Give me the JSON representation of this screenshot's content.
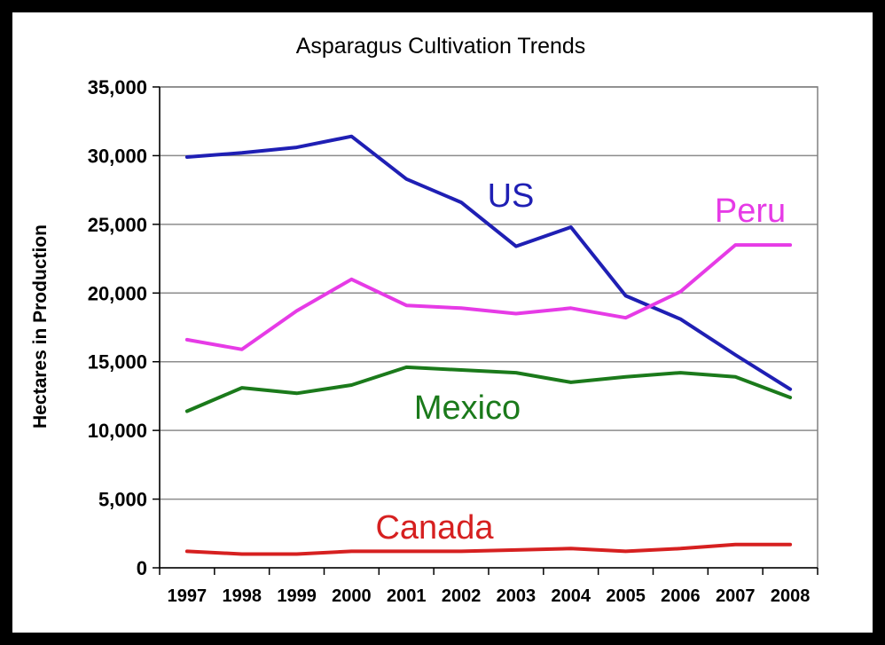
{
  "chart_data": {
    "type": "line",
    "title": "Asparagus Cultivation Trends",
    "xlabel": "",
    "ylabel": "Hectares in Production",
    "ylim": [
      0,
      35000
    ],
    "yticks": [
      "0",
      "5,000",
      "10,000",
      "15,000",
      "20,000",
      "25,000",
      "30,000",
      "35,000"
    ],
    "grid": true,
    "categories": [
      "1997",
      "1998",
      "1999",
      "2000",
      "2001",
      "2002",
      "2003",
      "2004",
      "2005",
      "2006",
      "2007",
      "2008"
    ],
    "series": [
      {
        "name": "US",
        "color": "#1f1fb4",
        "values": [
          29900,
          30200,
          30600,
          31400,
          28300,
          26600,
          23400,
          24800,
          19800,
          18100,
          15500,
          13000
        ]
      },
      {
        "name": "Peru",
        "color": "#e63be6",
        "values": [
          16600,
          15900,
          18700,
          21000,
          19100,
          18900,
          18500,
          18900,
          18200,
          20100,
          23500,
          23500
        ]
      },
      {
        "name": "Mexico",
        "color": "#1b7a1b",
        "values": [
          11400,
          13100,
          12700,
          13300,
          14600,
          14400,
          14200,
          13500,
          13900,
          14200,
          13900,
          12400
        ]
      },
      {
        "name": "Canada",
        "color": "#d62020",
        "values": [
          1200,
          1000,
          1000,
          1200,
          1200,
          1200,
          1300,
          1400,
          1200,
          1400,
          1700,
          1700
        ]
      }
    ]
  }
}
